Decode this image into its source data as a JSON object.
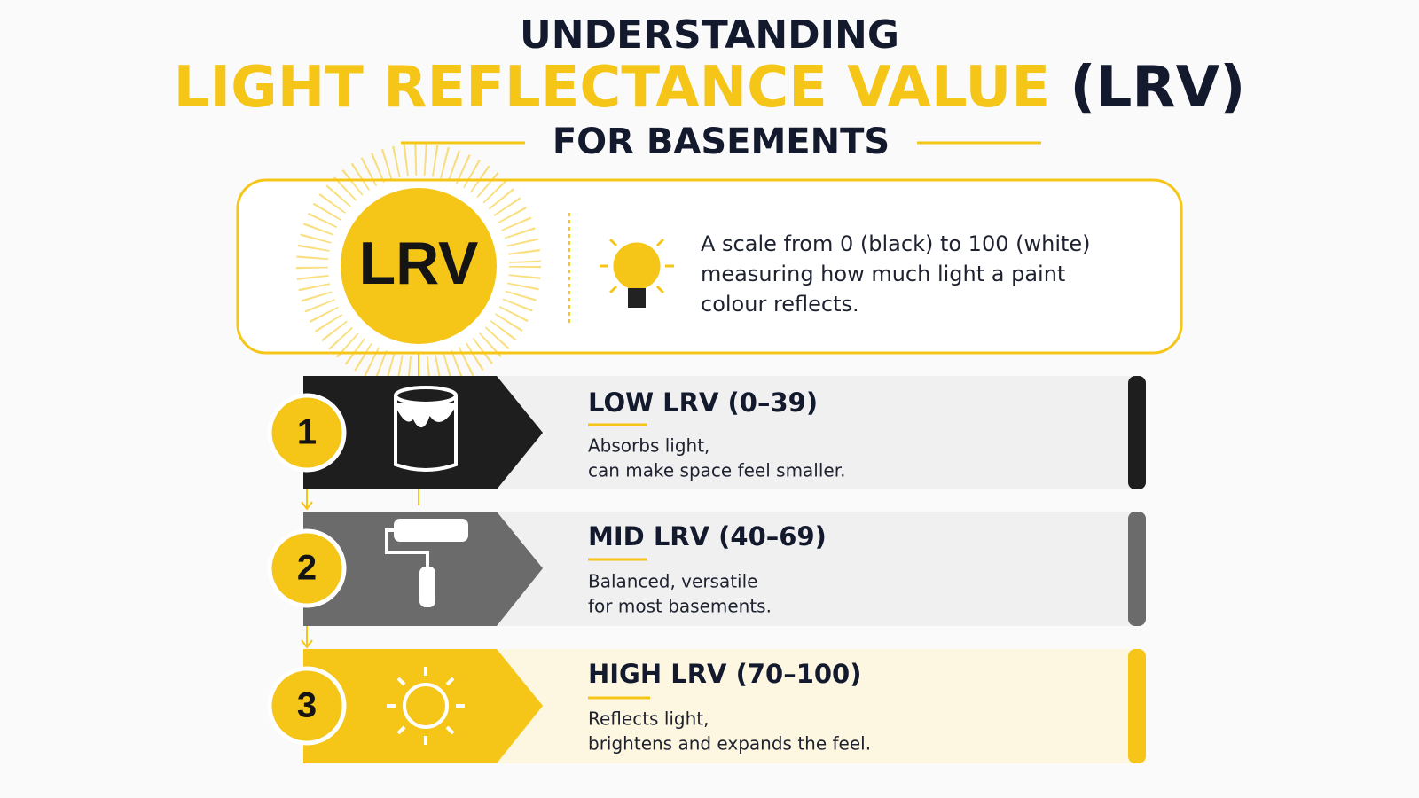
{
  "header": {
    "line1": "UNDERSTANDING",
    "line2_highlight": "LIGHT REFLECTANCE VALUE",
    "line2_rest": "(LRV)",
    "line3": "FOR BASEMENTS"
  },
  "intro": {
    "badge": "LRV",
    "description_lines": [
      "A scale from 0 (black) to 100 (white)",
      "measuring how much light a paint",
      "colour reflects."
    ]
  },
  "levels": [
    {
      "number": "1",
      "title": "LOW LRV (0–39)",
      "lines": [
        "Absorbs light,",
        "can make space feel smaller."
      ]
    },
    {
      "number": "2",
      "title": "MID LRV (40–69)",
      "lines": [
        "Balanced, versatile",
        "for most basements."
      ]
    },
    {
      "number": "3",
      "title": "HIGH LRV (70–100)",
      "lines": [
        "Reflects light,",
        "brightens and expands the feel."
      ]
    }
  ]
}
